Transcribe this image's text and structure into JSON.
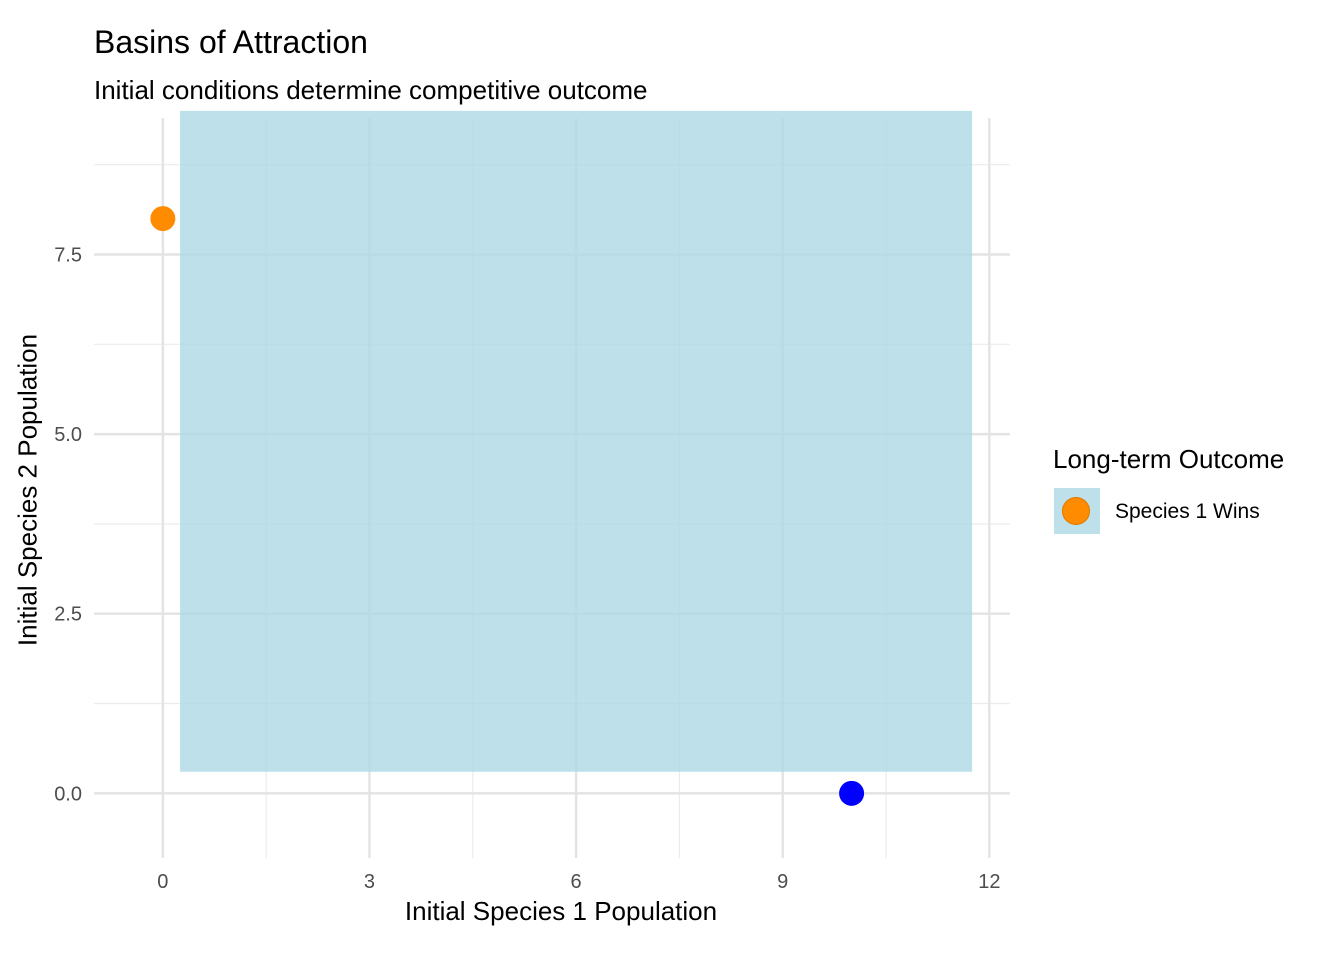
{
  "chart_data": {
    "type": "scatter",
    "title": "Basins of Attraction",
    "subtitle": "Initial conditions determine competitive outcome",
    "xlabel": "Initial Species 1 Population",
    "ylabel": "Initial Species 2 Population",
    "xlim": [
      -1.0,
      12.3
    ],
    "ylim": [
      -0.9,
      9.4
    ],
    "x_ticks": [
      0,
      3,
      6,
      9,
      12
    ],
    "x_tick_labels": [
      "0",
      "3",
      "6",
      "9",
      "12"
    ],
    "y_ticks": [
      0,
      2.5,
      5,
      7.5
    ],
    "y_tick_labels": [
      "0.0",
      "2.5",
      "5.0",
      "7.5"
    ],
    "x_minor": [
      1.5,
      4.5,
      7.5,
      10.5
    ],
    "y_minor": [
      1.25,
      3.75,
      6.25,
      8.75
    ],
    "grid": true,
    "region": {
      "x": [
        0.25,
        11.75
      ],
      "y": [
        0.3,
        9.5
      ],
      "color": "#add8e6",
      "opacity": 0.8,
      "outcome": "Species 1 Wins"
    },
    "points": [
      {
        "x": 0,
        "y": 8,
        "color": "#ff8c00"
      },
      {
        "x": 10,
        "y": 0,
        "color": "#0000ff"
      }
    ],
    "legend": {
      "title": "Long-term Outcome",
      "placement": "right",
      "entries": [
        {
          "label": "Species 1 Wins",
          "fill": "#add8e6",
          "point_color": "#ff8c00"
        }
      ]
    }
  }
}
